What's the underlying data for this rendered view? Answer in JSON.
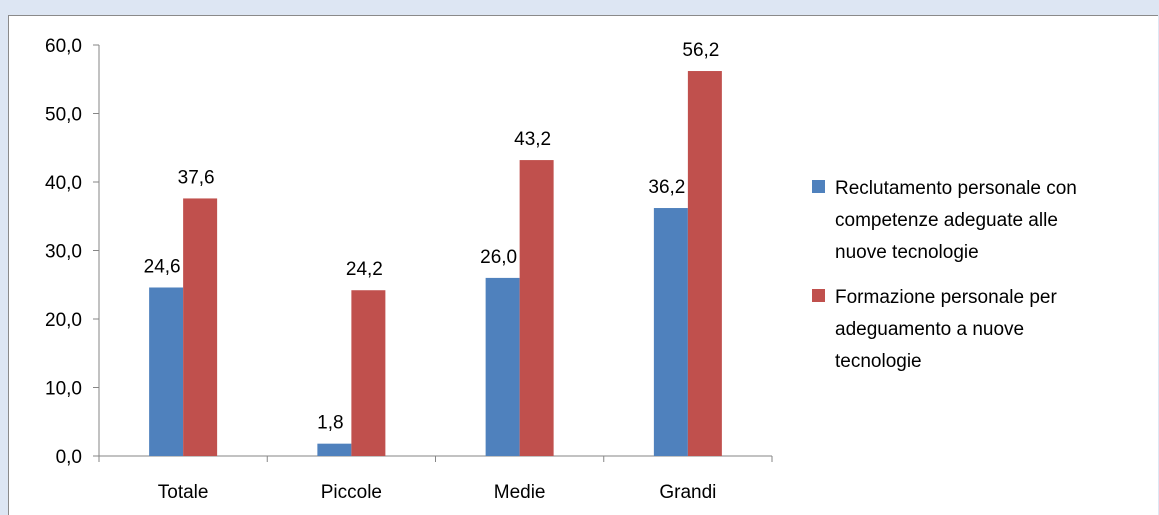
{
  "chart_data": {
    "type": "bar",
    "categories": [
      "Totale",
      "Piccole",
      "Medie",
      "Grandi"
    ],
    "series": [
      {
        "name": "Reclutamento personale con competenze adeguate alle nuove tecnologie",
        "legend_lines": [
          "Reclutamento personale con",
          "competenze adeguate alle",
          "nuove tecnologie"
        ],
        "values": [
          24.6,
          1.8,
          26.0,
          36.2
        ],
        "labels": [
          "24,6",
          "1,8",
          "26,0",
          "36,2"
        ],
        "color": "#4f81bd"
      },
      {
        "name": "Formazione personale per adeguamento a nuove tecnologie",
        "legend_lines": [
          "Formazione personale per",
          "adeguamento a nuove",
          "tecnologie"
        ],
        "values": [
          37.6,
          24.2,
          43.2,
          56.2
        ],
        "labels": [
          "37,6",
          "24,2",
          "43,2",
          "56,2"
        ],
        "color": "#c0504d"
      }
    ],
    "y_ticks": [
      "0,0",
      "10,0",
      "20,0",
      "30,0",
      "40,0",
      "50,0",
      "60,0"
    ],
    "ylim": [
      0,
      60
    ],
    "grid": false,
    "legend_position": "right"
  }
}
